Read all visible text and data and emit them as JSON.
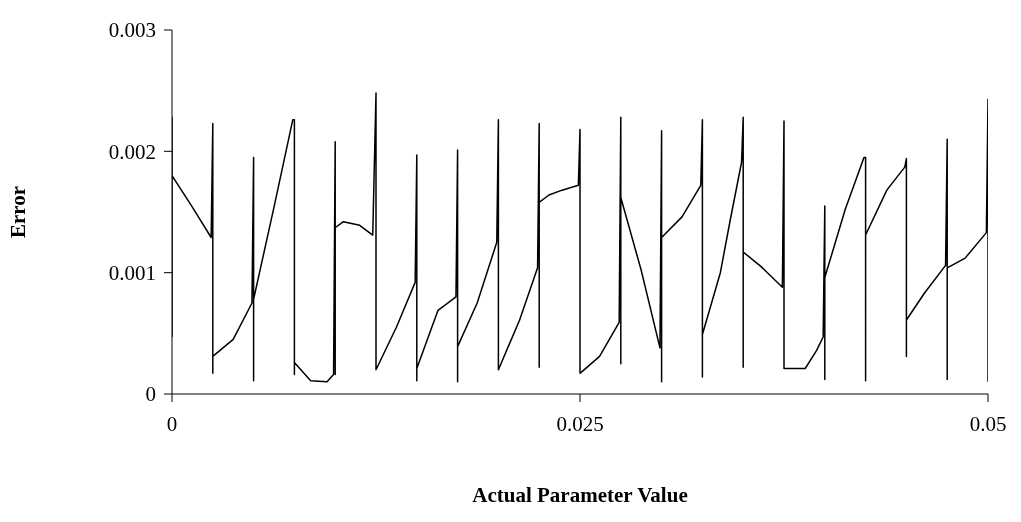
{
  "chart_data": {
    "type": "line",
    "xlabel": "Actual Parameter Value",
    "ylabel": "Error",
    "xlim": [
      0,
      0.05
    ],
    "xticks": [
      0,
      0.025,
      0.05
    ],
    "ylim": [
      0,
      0.003
    ],
    "yticks": [
      0,
      0.001,
      0.002,
      0.003
    ],
    "grid": false,
    "legend": false,
    "series": [
      {
        "color": "#000000",
        "x": [
          0,
          0,
          0,
          0.0012,
          0.0024,
          0.0025,
          0.0025,
          0.0025,
          0.00375,
          0.0049,
          0.005,
          0.005,
          0.005,
          0.00625,
          0.0074,
          0.0075,
          0.0075,
          0.0075,
          0.0085,
          0.0095,
          0.0099,
          0.01,
          0.01,
          0.01,
          0.0105,
          0.0115,
          0.0123,
          0.0125,
          0.0125,
          0.0125,
          0.01375,
          0.0149,
          0.015,
          0.015,
          0.015,
          0.0163,
          0.0174,
          0.0175,
          0.0175,
          0.0175,
          0.0187,
          0.0199,
          0.02,
          0.02,
          0.02,
          0.0213,
          0.0224,
          0.0225,
          0.0225,
          0.0225,
          0.0231,
          0.0239,
          0.0249,
          0.025,
          0.025,
          0.025,
          0.0262,
          0.0274,
          0.0275,
          0.0275,
          0.0275,
          0.02875,
          0.0299,
          0.03,
          0.03,
          0.03,
          0.03125,
          0.0324,
          0.0325,
          0.0325,
          0.0325,
          0.0336,
          0.0342,
          0.0349,
          0.035,
          0.035,
          0.035,
          0.0361,
          0.0374,
          0.0375,
          0.0375,
          0.0375,
          0.0388,
          0.0395,
          0.0399,
          0.04,
          0.04,
          0.04,
          0.04125,
          0.0424,
          0.0425,
          0.0425,
          0.0425,
          0.0438,
          0.0449,
          0.045,
          0.045,
          0.045,
          0.0461,
          0.0474,
          0.0475,
          0.0475,
          0.0475,
          0.0486,
          0.0499,
          0.05,
          0.05
        ],
        "values": [
          0.00047,
          0.00228,
          0.0018,
          0.00155,
          0.00129,
          0.00223,
          0.00017,
          0.00031,
          0.00045,
          0.00075,
          0.00195,
          0.00011,
          0.00078,
          0.00154,
          0.00226,
          0.00226,
          0.00016,
          0.00026,
          0.00011,
          0.0001,
          0.00016,
          0.00208,
          0.00016,
          0.00137,
          0.00142,
          0.00139,
          0.00131,
          0.00248,
          0.00022,
          0.0002,
          0.00055,
          0.00092,
          0.00197,
          0.00011,
          0.00021,
          0.00069,
          0.0008,
          0.00201,
          0.0001,
          0.00039,
          0.00075,
          0.00125,
          0.00226,
          0.0002,
          0.0002,
          0.00061,
          0.00104,
          0.00223,
          0.00022,
          0.00158,
          0.00164,
          0.00168,
          0.00172,
          0.00218,
          0.00017,
          0.00017,
          0.00031,
          0.00059,
          0.00228,
          0.00025,
          0.00162,
          0.00102,
          0.00038,
          0.00217,
          0.0001,
          0.00129,
          0.00146,
          0.00172,
          0.00226,
          0.00014,
          0.00049,
          0.001,
          0.00143,
          0.00191,
          0.00228,
          0.00022,
          0.00117,
          0.00105,
          0.00088,
          0.00225,
          0.00022,
          0.00021,
          0.00021,
          0.00036,
          0.00047,
          0.00155,
          0.00012,
          0.00096,
          0.00152,
          0.00195,
          0.00195,
          0.00011,
          0.00131,
          0.00168,
          0.00187,
          0.00194,
          0.00031,
          0.00061,
          0.00083,
          0.00106,
          0.0021,
          0.00012,
          0.00104,
          0.00112,
          0.00133,
          0.00243,
          0.0001
        ]
      }
    ]
  }
}
